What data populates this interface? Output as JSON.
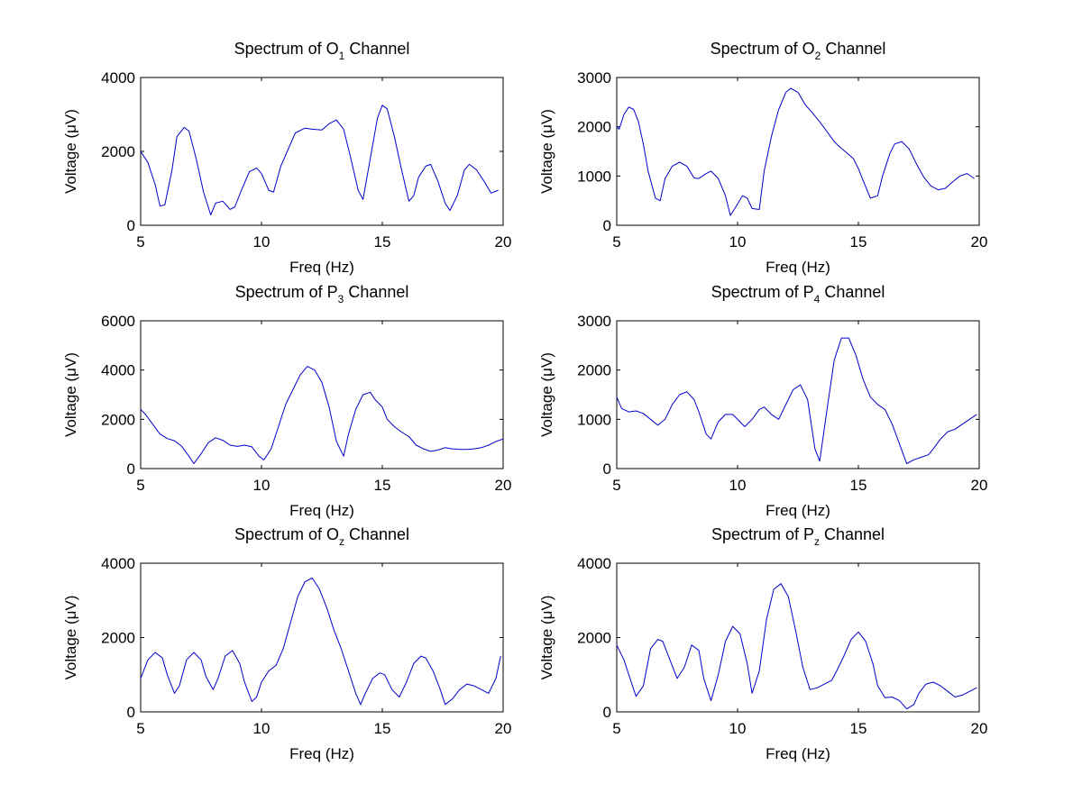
{
  "figure": {
    "background": "#ffffff",
    "line_color": "#0000cc"
  },
  "chart_data": [
    {
      "type": "line",
      "title_parts": [
        "Spectrum of O",
        "1",
        " Channel"
      ],
      "xlabel": "Freq (Hz)",
      "ylabel_parts": [
        "Voltage (",
        "μV",
        ")"
      ],
      "xlim": [
        5,
        20
      ],
      "ylim": [
        0,
        4000
      ],
      "xticks": [
        5,
        10,
        15,
        20
      ],
      "yticks": [
        0,
        2000,
        4000
      ],
      "grid": false,
      "series": [
        {
          "color": "#0000cc",
          "x": [
            5,
            5.3,
            5.6,
            5.8,
            6,
            6.3,
            6.5,
            6.8,
            7,
            7.3,
            7.6,
            7.9,
            8.1,
            8.4,
            8.7,
            8.9,
            9.2,
            9.5,
            9.8,
            10,
            10.3,
            10.5,
            10.8,
            11,
            11.4,
            11.8,
            12.1,
            12.5,
            12.8,
            13.1,
            13.4,
            13.7,
            14,
            14.2,
            14.5,
            14.8,
            15,
            15.2,
            15.5,
            15.8,
            16.1,
            16.3,
            16.5,
            16.8,
            17,
            17.3,
            17.6,
            17.8,
            18.1,
            18.4,
            18.6,
            18.9,
            19.2,
            19.5,
            19.8
          ],
          "y": [
            2000,
            1700,
            1100,
            520,
            550,
            1500,
            2400,
            2650,
            2550,
            1800,
            900,
            280,
            600,
            650,
            430,
            500,
            1000,
            1450,
            1550,
            1400,
            950,
            900,
            1600,
            1900,
            2500,
            2630,
            2600,
            2580,
            2750,
            2850,
            2600,
            1800,
            950,
            700,
            1800,
            2900,
            3250,
            3150,
            2400,
            1500,
            650,
            800,
            1300,
            1600,
            1650,
            1200,
            600,
            400,
            800,
            1500,
            1650,
            1500,
            1200,
            870,
            950
          ]
        }
      ]
    },
    {
      "type": "line",
      "title_parts": [
        "Spectrum of O",
        "2",
        " Channel"
      ],
      "xlabel": "Freq (Hz)",
      "ylabel_parts": [
        "Voltage (",
        "μV",
        ")"
      ],
      "xlim": [
        5,
        20
      ],
      "ylim": [
        0,
        3000
      ],
      "xticks": [
        5,
        10,
        15,
        20
      ],
      "yticks": [
        0,
        1000,
        2000,
        3000
      ],
      "grid": false,
      "series": [
        {
          "color": "#0000cc",
          "x": [
            5,
            5.1,
            5.3,
            5.5,
            5.7,
            5.9,
            6.1,
            6.3,
            6.6,
            6.8,
            7,
            7.3,
            7.6,
            7.9,
            8.2,
            8.4,
            8.7,
            8.9,
            9.2,
            9.5,
            9.7,
            9.9,
            10.2,
            10.4,
            10.6,
            10.9,
            11.1,
            11.4,
            11.7,
            12,
            12.2,
            12.5,
            12.8,
            13.1,
            13.4,
            13.7,
            14,
            14.2,
            14.5,
            14.8,
            15,
            15.2,
            15.5,
            15.8,
            16,
            16.3,
            16.5,
            16.8,
            17.1,
            17.4,
            17.7,
            18,
            18.3,
            18.6,
            18.9,
            19.2,
            19.5,
            19.8
          ],
          "y": [
            2000,
            1950,
            2250,
            2400,
            2350,
            2100,
            1650,
            1100,
            550,
            500,
            950,
            1200,
            1280,
            1200,
            960,
            950,
            1050,
            1100,
            950,
            600,
            200,
            350,
            600,
            550,
            340,
            320,
            1100,
            1800,
            2350,
            2700,
            2780,
            2700,
            2450,
            2280,
            2100,
            1900,
            1700,
            1600,
            1480,
            1350,
            1150,
            900,
            550,
            600,
            1000,
            1450,
            1650,
            1700,
            1550,
            1250,
            980,
            800,
            720,
            750,
            880,
            1000,
            1050,
            950
          ]
        }
      ]
    },
    {
      "type": "line",
      "title_parts": [
        "Spectrum of P",
        "3",
        " Channel"
      ],
      "xlabel": "Freq (Hz)",
      "ylabel_parts": [
        "Voltage (",
        "μV",
        ")"
      ],
      "xlim": [
        5,
        20
      ],
      "ylim": [
        0,
        6000
      ],
      "xticks": [
        5,
        10,
        15,
        20
      ],
      "yticks": [
        0,
        2000,
        4000,
        6000
      ],
      "grid": false,
      "series": [
        {
          "color": "#0000cc",
          "x": [
            5,
            5.2,
            5.5,
            5.8,
            6.1,
            6.4,
            6.7,
            7,
            7.2,
            7.5,
            7.8,
            8.1,
            8.4,
            8.7,
            9,
            9.3,
            9.6,
            9.9,
            10.1,
            10.4,
            10.7,
            11,
            11.3,
            11.6,
            11.9,
            12.2,
            12.5,
            12.8,
            13.1,
            13.4,
            13.6,
            13.9,
            14.2,
            14.5,
            14.7,
            15,
            15.2,
            15.5,
            15.8,
            16.1,
            16.4,
            16.7,
            17,
            17.3,
            17.6,
            17.9,
            18.2,
            18.5,
            18.8,
            19.1,
            19.4,
            19.7,
            20
          ],
          "y": [
            2400,
            2200,
            1800,
            1400,
            1220,
            1130,
            900,
            500,
            200,
            600,
            1050,
            1250,
            1150,
            950,
            900,
            950,
            880,
            500,
            350,
            800,
            1700,
            2600,
            3200,
            3800,
            4150,
            4000,
            3500,
            2500,
            1100,
            500,
            1400,
            2400,
            3000,
            3100,
            2800,
            2500,
            2000,
            1700,
            1480,
            1300,
            950,
            800,
            700,
            750,
            850,
            800,
            780,
            780,
            800,
            850,
            950,
            1100,
            1200
          ]
        }
      ]
    },
    {
      "type": "line",
      "title_parts": [
        "Spectrum of P",
        "4",
        " Channel"
      ],
      "xlabel": "Freq (Hz)",
      "ylabel_parts": [
        "Voltage (",
        "μV",
        ")"
      ],
      "xlim": [
        5,
        20
      ],
      "ylim": [
        0,
        3000
      ],
      "xticks": [
        5,
        10,
        15,
        20
      ],
      "yticks": [
        0,
        1000,
        2000,
        3000
      ],
      "grid": false,
      "series": [
        {
          "color": "#0000cc",
          "x": [
            5,
            5.2,
            5.5,
            5.8,
            6.1,
            6.4,
            6.7,
            7,
            7.3,
            7.6,
            7.9,
            8.2,
            8.4,
            8.7,
            8.9,
            9.2,
            9.5,
            9.8,
            10.1,
            10.3,
            10.6,
            10.9,
            11.1,
            11.4,
            11.7,
            12,
            12.3,
            12.6,
            12.9,
            13.2,
            13.4,
            13.7,
            14,
            14.3,
            14.6,
            14.9,
            15.2,
            15.5,
            15.8,
            16.1,
            16.4,
            16.7,
            17,
            17.3,
            17.6,
            17.9,
            18.1,
            18.4,
            18.7,
            19,
            19.3,
            19.6,
            19.9
          ],
          "y": [
            1450,
            1220,
            1150,
            1170,
            1120,
            1000,
            880,
            1000,
            1300,
            1500,
            1560,
            1400,
            1150,
            700,
            600,
            950,
            1100,
            1100,
            950,
            850,
            1000,
            1200,
            1250,
            1100,
            1000,
            1300,
            1600,
            1700,
            1400,
            400,
            150,
            1200,
            2200,
            2650,
            2650,
            2300,
            1800,
            1450,
            1300,
            1200,
            900,
            500,
            100,
            180,
            230,
            280,
            400,
            600,
            750,
            800,
            900,
            1000,
            1100
          ]
        }
      ]
    },
    {
      "type": "line",
      "title_parts": [
        "Spectrum of O",
        "z",
        " Channel"
      ],
      "xlabel": "Freq (Hz)",
      "ylabel_parts": [
        "Voltage (",
        "μV",
        ")"
      ],
      "xlim": [
        5,
        20
      ],
      "ylim": [
        0,
        4000
      ],
      "xticks": [
        5,
        10,
        15,
        20
      ],
      "yticks": [
        0,
        2000,
        4000
      ],
      "grid": false,
      "series": [
        {
          "color": "#0000cc",
          "x": [
            5,
            5.3,
            5.6,
            5.9,
            6.1,
            6.4,
            6.6,
            6.9,
            7.2,
            7.5,
            7.7,
            8,
            8.2,
            8.5,
            8.8,
            9.1,
            9.3,
            9.6,
            9.8,
            10,
            10.3,
            10.6,
            10.9,
            11.2,
            11.5,
            11.8,
            12.1,
            12.4,
            12.7,
            13,
            13.3,
            13.6,
            13.9,
            14.1,
            14.3,
            14.6,
            14.9,
            15.1,
            15.4,
            15.7,
            16,
            16.3,
            16.6,
            16.8,
            17.1,
            17.4,
            17.6,
            17.9,
            18.2,
            18.5,
            18.8,
            19.1,
            19.4,
            19.7,
            19.9
          ],
          "y": [
            900,
            1400,
            1600,
            1450,
            1000,
            500,
            700,
            1400,
            1600,
            1400,
            950,
            600,
            900,
            1500,
            1650,
            1300,
            800,
            280,
            400,
            800,
            1100,
            1250,
            1700,
            2400,
            3100,
            3500,
            3600,
            3300,
            2800,
            2200,
            1700,
            1100,
            500,
            200,
            500,
            900,
            1050,
            1000,
            600,
            400,
            800,
            1300,
            1500,
            1450,
            1100,
            600,
            200,
            350,
            600,
            750,
            700,
            600,
            500,
            900,
            1500
          ]
        }
      ]
    },
    {
      "type": "line",
      "title_parts": [
        "Spectrum of P",
        "z",
        " Channel"
      ],
      "xlabel": "Freq (Hz)",
      "ylabel_parts": [
        "Voltage (",
        "μV",
        ")"
      ],
      "xlim": [
        5,
        20
      ],
      "ylim": [
        0,
        4000
      ],
      "xticks": [
        5,
        10,
        15,
        20
      ],
      "yticks": [
        0,
        2000,
        4000
      ],
      "grid": false,
      "series": [
        {
          "color": "#0000cc",
          "x": [
            5,
            5.3,
            5.6,
            5.8,
            6.1,
            6.4,
            6.7,
            6.9,
            7.2,
            7.5,
            7.8,
            8.1,
            8.4,
            8.6,
            8.9,
            9.2,
            9.5,
            9.8,
            10.1,
            10.4,
            10.6,
            10.9,
            11.2,
            11.5,
            11.8,
            12.1,
            12.4,
            12.7,
            13,
            13.3,
            13.6,
            13.9,
            14.1,
            14.4,
            14.7,
            15,
            15.3,
            15.6,
            15.8,
            16.1,
            16.4,
            16.7,
            17,
            17.3,
            17.5,
            17.8,
            18.1,
            18.4,
            18.7,
            19,
            19.3,
            19.6,
            19.9
          ],
          "y": [
            1800,
            1400,
            800,
            420,
            700,
            1700,
            1950,
            1900,
            1400,
            900,
            1200,
            1800,
            1650,
            900,
            300,
            1000,
            1900,
            2300,
            2100,
            1300,
            500,
            1100,
            2500,
            3300,
            3450,
            3100,
            2200,
            1200,
            600,
            650,
            750,
            850,
            1100,
            1500,
            1950,
            2150,
            1900,
            1300,
            700,
            380,
            400,
            300,
            80,
            200,
            500,
            750,
            800,
            700,
            550,
            400,
            450,
            550,
            650
          ]
        }
      ]
    }
  ]
}
